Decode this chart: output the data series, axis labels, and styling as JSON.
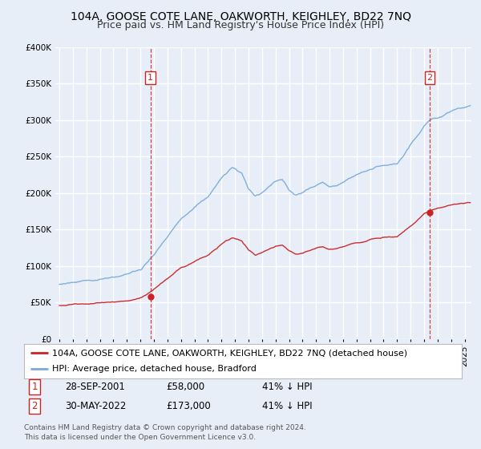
{
  "title": "104A, GOOSE COTE LANE, OAKWORTH, KEIGHLEY, BD22 7NQ",
  "subtitle": "Price paid vs. HM Land Registry's House Price Index (HPI)",
  "ylim": [
    0,
    400000
  ],
  "yticks": [
    0,
    50000,
    100000,
    150000,
    200000,
    250000,
    300000,
    350000,
    400000
  ],
  "ytick_labels": [
    "£0",
    "£50K",
    "£100K",
    "£150K",
    "£200K",
    "£250K",
    "£300K",
    "£350K",
    "£400K"
  ],
  "xlim_start": 1994.7,
  "xlim_end": 2025.5,
  "background_color": "#e8eef8",
  "plot_bg_color": "#e8eef8",
  "grid_color": "#ffffff",
  "hpi_color": "#7aabdc",
  "price_color": "#cc2222",
  "marker_color": "#cc2222",
  "vline_color": "#cc2222",
  "sale1_x": 2001.747,
  "sale1_y": 58000,
  "sale1_label": "1",
  "sale1_date": "28-SEP-2001",
  "sale1_price": "£58,000",
  "sale1_hpi": "41% ↓ HPI",
  "sale2_x": 2022.413,
  "sale2_y": 173000,
  "sale2_label": "2",
  "sale2_date": "30-MAY-2022",
  "sale2_price": "£173,000",
  "sale2_hpi": "41% ↓ HPI",
  "legend_label1": "104A, GOOSE COTE LANE, OAKWORTH, KEIGHLEY, BD22 7NQ (detached house)",
  "legend_label2": "HPI: Average price, detached house, Bradford",
  "footnote1": "Contains HM Land Registry data © Crown copyright and database right 2024.",
  "footnote2": "This data is licensed under the Open Government Licence v3.0.",
  "title_fontsize": 10,
  "subtitle_fontsize": 9,
  "tick_fontsize": 7.5,
  "legend_fontsize": 8,
  "footnote_fontsize": 6.5
}
